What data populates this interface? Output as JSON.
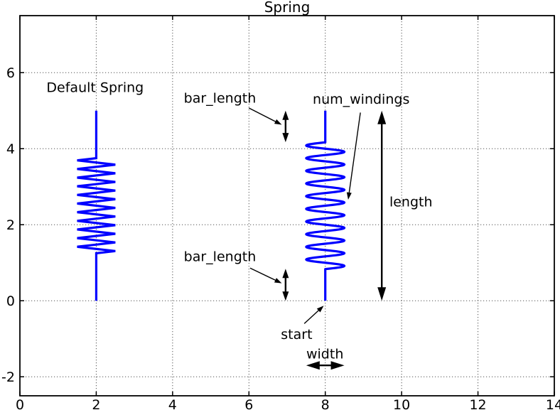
{
  "figure": {
    "title": "Spring",
    "background": "#ffffff",
    "axis_color": "#000000",
    "grid_color": "#555555",
    "text_color": "#000000",
    "spring_color": "#0000ff"
  },
  "chart_data": {
    "type": "line",
    "title": "Spring",
    "xlabel": "",
    "ylabel": "",
    "xlim": [
      0,
      14
    ],
    "ylim": [
      -2.5,
      7.5
    ],
    "x_tick_values": [
      0,
      2,
      4,
      6,
      8,
      10,
      12,
      14
    ],
    "x_tick_labels": [
      "0",
      "2",
      "4",
      "6",
      "8",
      "10",
      "12",
      "14"
    ],
    "y_tick_values": [
      -2,
      0,
      2,
      4,
      6
    ],
    "y_tick_labels": [
      "-2",
      "0",
      "2",
      "4",
      "6"
    ],
    "grid": true,
    "grid_style": "dotted",
    "legend": null,
    "series": [
      {
        "name": "default-spring",
        "shape": "spring",
        "style": "teeth",
        "start": [
          2,
          0
        ],
        "length": 5,
        "width": 1.0,
        "bar_length": 1.25,
        "num_windings": 11,
        "color": "#0000ff"
      },
      {
        "name": "annotated-spring",
        "shape": "spring",
        "style": "rounded",
        "start": [
          8,
          0
        ],
        "length": 5,
        "width": 1.0,
        "bar_length": 0.8333,
        "num_windings": 10,
        "color": "#0000ff"
      }
    ],
    "annotations": {
      "texts": [
        {
          "name": "default-spring-label",
          "text": "Default Spring",
          "x": 1.97,
          "y": 5.61,
          "anchor": "middle"
        },
        {
          "name": "bar-length-upper-label",
          "text": "bar_length",
          "x": 5.24,
          "y": 5.33,
          "anchor": "middle"
        },
        {
          "name": "num-windings-label",
          "text": "num_windings",
          "x": 8.94,
          "y": 5.3,
          "anchor": "middle"
        },
        {
          "name": "length-label",
          "text": "length",
          "x": 9.68,
          "y": 2.6,
          "anchor": "start"
        },
        {
          "name": "bar-length-lower-label",
          "text": "bar_length",
          "x": 5.24,
          "y": 1.16,
          "anchor": "middle"
        },
        {
          "name": "start-label",
          "text": "start",
          "x": 7.25,
          "y": -0.88,
          "anchor": "middle"
        },
        {
          "name": "width-label",
          "text": "width",
          "x": 7.99,
          "y": -1.4,
          "anchor": "middle"
        }
      ],
      "dimension_arrows": [
        {
          "name": "bar-length-upper-dim",
          "x1": 6.96,
          "y1": 5.0,
          "x2": 6.96,
          "y2": 4.17,
          "size": "small"
        },
        {
          "name": "bar-length-lower-dim",
          "x1": 6.96,
          "y1": 0.84,
          "x2": 6.96,
          "y2": 0.0,
          "size": "small"
        },
        {
          "name": "length-dim",
          "x1": 9.48,
          "y1": 5.0,
          "x2": 9.48,
          "y2": 0.0,
          "size": "large"
        },
        {
          "name": "width-dim",
          "x1": 7.5,
          "y1": -1.7,
          "x2": 8.5,
          "y2": -1.7,
          "size": "large"
        }
      ],
      "pointer_arrows": [
        {
          "name": "bar-length-upper-pointer",
          "x1": 6.0,
          "y1": 5.07,
          "x2": 6.86,
          "y2": 4.63
        },
        {
          "name": "bar-length-lower-pointer",
          "x1": 6.03,
          "y1": 0.86,
          "x2": 6.86,
          "y2": 0.46
        },
        {
          "name": "num-windings-pointer",
          "x1": 8.92,
          "y1": 4.95,
          "x2": 8.6,
          "y2": 2.66
        },
        {
          "name": "start-pointer",
          "x1": 7.45,
          "y1": -0.6,
          "x2": 7.96,
          "y2": -0.13
        }
      ]
    }
  }
}
